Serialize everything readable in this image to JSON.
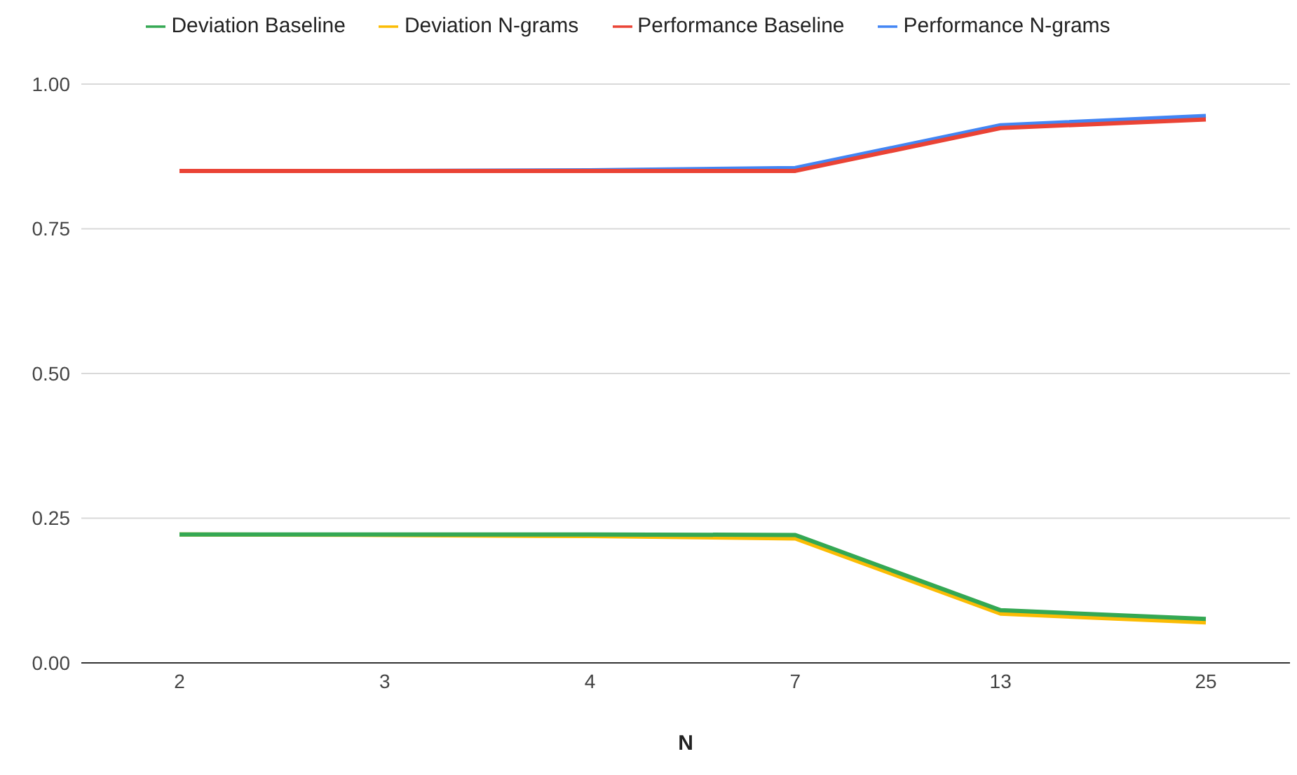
{
  "chart_data": {
    "type": "line",
    "xlabel": "N",
    "categories": [
      "2",
      "3",
      "4",
      "7",
      "13",
      "25"
    ],
    "series": [
      {
        "name": "Performance N-grams",
        "color": "#4285f4",
        "values": [
          0.85,
          0.85,
          0.851,
          0.855,
          0.929,
          0.945
        ]
      },
      {
        "name": "Performance Baseline",
        "color": "#ea4335",
        "values": [
          0.85,
          0.85,
          0.85,
          0.85,
          0.924,
          0.939
        ]
      },
      {
        "name": "Deviation N-grams",
        "color": "#fbbc04",
        "values": [
          0.222,
          0.221,
          0.219,
          0.215,
          0.085,
          0.07
        ]
      },
      {
        "name": "Deviation Baseline",
        "color": "#34a853",
        "values": [
          0.222,
          0.222,
          0.222,
          0.221,
          0.091,
          0.076
        ]
      }
    ],
    "ylim": [
      0,
      1
    ],
    "yticks": [
      {
        "value": 0,
        "label": "0.00"
      },
      {
        "value": 0.25,
        "label": "0.25"
      },
      {
        "value": 0.5,
        "label": "0.50"
      },
      {
        "value": 0.75,
        "label": "0.75"
      },
      {
        "value": 1,
        "label": "1.00"
      }
    ],
    "grid": "y",
    "legend": "top",
    "marker": "none",
    "line_style": "solid"
  }
}
